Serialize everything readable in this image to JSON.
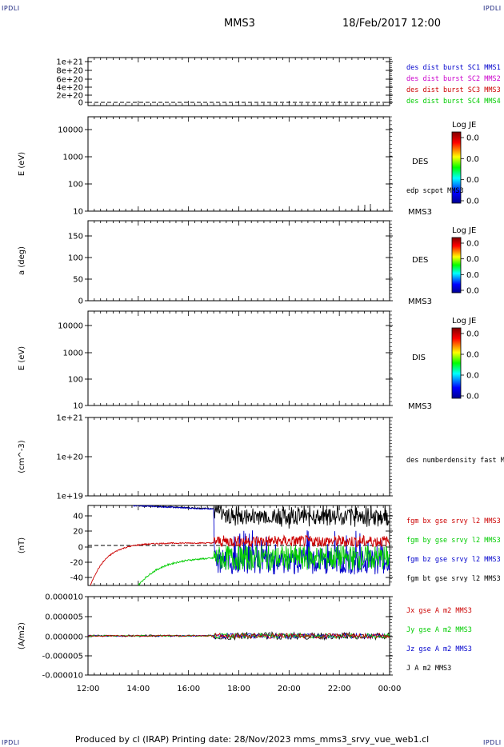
{
  "header": {
    "corner_label": "IPDLI",
    "spacecraft": "MMS3",
    "datetime": "18/Feb/2017 12:00"
  },
  "footer": {
    "text": "Produced by cl (IRAP)   Printing date: 28/Nov/2023   mms_mms3_srvy_vue_web1.cl"
  },
  "chart_data": [
    {
      "type": "line",
      "panel": "des dist burst",
      "ylabel": "",
      "yticks": [
        "1e+21",
        "8e+20",
        "6e+20",
        "4e+20",
        "2e+20",
        "0"
      ],
      "legend": [
        {
          "name": "des dist burst SC1 MMS1",
          "color": "#0000cc"
        },
        {
          "name": "des dist burst SC2 MMS2",
          "color": "#cc00cc"
        },
        {
          "name": "des dist burst SC3 MMS3",
          "color": "#cc0000"
        },
        {
          "name": "des dist burst SC4 MMS4",
          "color": "#00cc00"
        }
      ]
    },
    {
      "type": "heatmap",
      "panel": "DES energy",
      "ylabel": "E (eV)",
      "yticks": [
        "10000",
        "1000",
        "100",
        "10"
      ],
      "instrument": "DES",
      "overlay": "edp scpot MMS3",
      "spacecraft": "MMS3",
      "colorbar": {
        "title": "Log JE",
        "ticks": [
          "0.0",
          "0.0",
          "0.0",
          "0.0"
        ]
      }
    },
    {
      "type": "heatmap",
      "panel": "DES pitch angle",
      "ylabel": "a (deg)",
      "yticks": [
        "150",
        "100",
        "50",
        "0"
      ],
      "instrument": "DES",
      "spacecraft": "MMS3",
      "colorbar": {
        "title": "Log JE",
        "ticks": [
          "0.0",
          "0.0",
          "0.0",
          "0.0"
        ]
      }
    },
    {
      "type": "heatmap",
      "panel": "DIS energy",
      "ylabel": "E (eV)",
      "yticks": [
        "10000",
        "1000",
        "100",
        "10"
      ],
      "instrument": "DIS",
      "spacecraft": "MMS3",
      "colorbar": {
        "title": "Log JE",
        "ticks": [
          "0.0",
          "0.0",
          "0.0",
          "0.0"
        ]
      }
    },
    {
      "type": "line",
      "panel": "number density",
      "ylabel": "(cm^-3)",
      "yticks": [
        "1e+21",
        "1e+20",
        "1e+19"
      ],
      "legend": [
        {
          "name": "des numberdensity fast M",
          "color": "#000000"
        }
      ]
    },
    {
      "type": "line",
      "panel": "magnetic field",
      "ylabel": "(nT)",
      "yticks": [
        "40",
        "20",
        "0",
        "-20",
        "-40"
      ],
      "ylim": [
        -48,
        48
      ],
      "legend": [
        {
          "name": "fgm bx gse srvy l2 MMS3",
          "color": "#cc0000"
        },
        {
          "name": "fgm by gse srvy l2 MMS3",
          "color": "#00cc00"
        },
        {
          "name": "fgm bz gse srvy l2 MMS3",
          "color": "#0000cc"
        },
        {
          "name": "fgm bt gse srvy l2 MMS3",
          "color": "#000000"
        }
      ]
    },
    {
      "type": "line",
      "panel": "current density",
      "ylabel": "(A/m2)",
      "yticks": [
        "0.000010",
        "0.000005",
        "0.000000",
        "-0.000005",
        "-0.000010"
      ],
      "ylim": [
        -1e-05,
        1e-05
      ],
      "legend": [
        {
          "name": "Jx gse A m2 MMS3",
          "color": "#cc0000"
        },
        {
          "name": "Jy gse A m2 MMS3",
          "color": "#00cc00"
        },
        {
          "name": "Jz gse A m2 MMS3",
          "color": "#0000cc"
        },
        {
          "name": "J A m2 MMS3",
          "color": "#000000"
        }
      ]
    }
  ],
  "xaxis": {
    "ticks": [
      "12:00",
      "14:00",
      "16:00",
      "18:00",
      "20:00",
      "22:00",
      "00:00"
    ]
  }
}
